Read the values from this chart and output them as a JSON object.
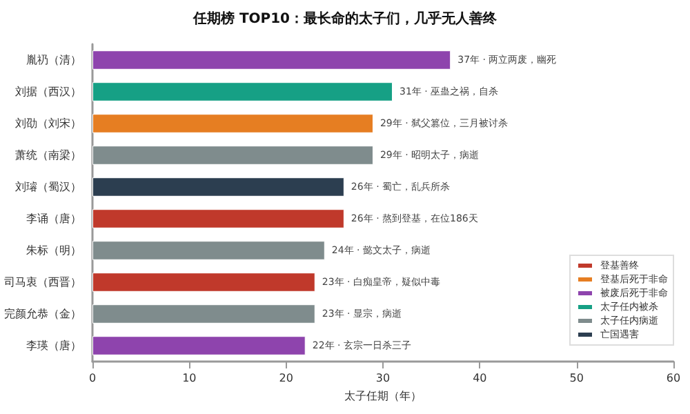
{
  "chart_data": {
    "type": "bar",
    "orientation": "horizontal",
    "stacked": true,
    "title": "任期榜 TOP10：最长命的太子们，几乎无人善终",
    "xlabel": "太子任期（年）",
    "categories": [
      "胤礽（清）",
      "刘据（西汉）",
      "刘劭（刘宋）",
      "萧统（南梁）",
      "刘璿（蜀汉）",
      "李诵（唐）",
      "朱标（明）",
      "司马衷（西晋）",
      "完颜允恭（金）",
      "李瑛（唐）"
    ],
    "series": [
      {
        "name": "登基善终",
        "color": "#c0392b",
        "values": [
          null,
          null,
          null,
          null,
          null,
          26,
          null,
          23,
          null,
          null
        ],
        "value_labels": [
          null,
          null,
          null,
          null,
          null,
          "26年 · 熬到登基，在位186天",
          null,
          "23年 · 白痴皇帝，疑似中毒",
          null,
          null
        ]
      },
      {
        "name": "登基后死于非命",
        "color": "#e67e22",
        "values": [
          null,
          null,
          29,
          null,
          null,
          null,
          null,
          null,
          null,
          null
        ],
        "value_labels": [
          null,
          null,
          "29年 · 弑父篡位，三月被讨杀",
          null,
          null,
          null,
          null,
          null,
          null,
          null
        ]
      },
      {
        "name": "被废后死于非命",
        "color": "#8e44ad",
        "values": [
          37,
          null,
          null,
          null,
          null,
          null,
          null,
          null,
          null,
          22
        ],
        "value_labels": [
          "37年 · 两立两废，幽死",
          null,
          null,
          null,
          null,
          null,
          null,
          null,
          null,
          "22年 · 玄宗一日杀三子"
        ]
      },
      {
        "name": "太子任内被杀",
        "color": "#16a085",
        "values": [
          null,
          31,
          null,
          null,
          null,
          null,
          null,
          null,
          null,
          null
        ],
        "value_labels": [
          null,
          "31年 · 巫蛊之祸，自杀",
          null,
          null,
          null,
          null,
          null,
          null,
          null,
          null
        ]
      },
      {
        "name": "太子任内病逝",
        "color": "#7f8c8d",
        "values": [
          null,
          null,
          null,
          29,
          null,
          null,
          24,
          null,
          23,
          null
        ],
        "value_labels": [
          null,
          null,
          null,
          "29年 · 昭明太子，病逝",
          null,
          null,
          "24年 · 懿文太子，病逝",
          null,
          "23年 · 显宗，病逝",
          null
        ]
      },
      {
        "name": "亡国遇害",
        "color": "#2c3e50",
        "values": [
          null,
          null,
          null,
          null,
          26,
          null,
          null,
          null,
          null,
          null
        ],
        "value_labels": [
          null,
          null,
          null,
          null,
          "26年 · 蜀亡，乱兵所杀",
          null,
          null,
          null,
          null,
          null
        ]
      }
    ],
    "xlim": [
      0,
      60
    ],
    "xticks": [
      0,
      10,
      20,
      30,
      40,
      50,
      60
    ],
    "grid": false,
    "legend": "bottom right"
  }
}
